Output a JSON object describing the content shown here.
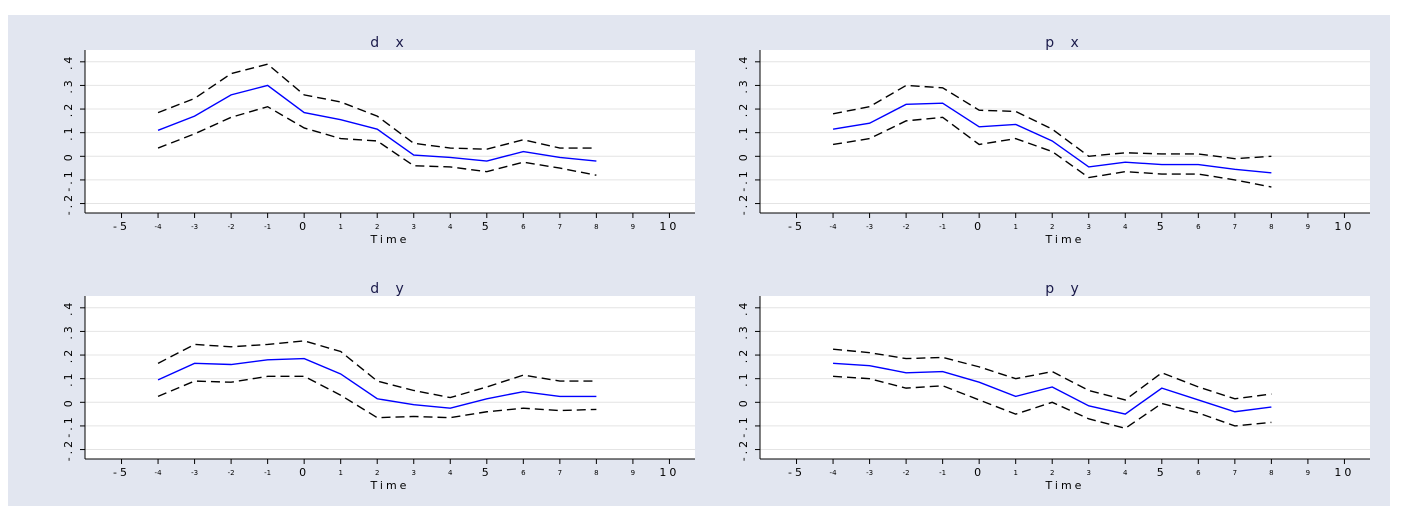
{
  "chart_data": [
    {
      "type": "line",
      "title": "d x",
      "x_label": "Time",
      "x": [
        -4,
        -3,
        -2,
        -1,
        0,
        1,
        2,
        3,
        4,
        5,
        6,
        7,
        8
      ],
      "series": [
        {
          "color": "#0000ff",
          "style": "solid",
          "values": [
            0.11,
            0.17,
            0.26,
            0.3,
            0.185,
            0.155,
            0.115,
            0.005,
            -0.005,
            -0.02,
            0.02,
            -0.005,
            -0.02
          ]
        },
        {
          "color": "#000000",
          "style": "dashed",
          "values": [
            0.185,
            0.245,
            0.35,
            0.39,
            0.26,
            0.23,
            0.17,
            0.055,
            0.035,
            0.03,
            0.07,
            0.035,
            0.035
          ]
        },
        {
          "color": "#000000",
          "style": "dashed",
          "values": [
            0.035,
            0.095,
            0.165,
            0.21,
            0.12,
            0.075,
            0.065,
            -0.04,
            -0.045,
            -0.065,
            -0.025,
            -0.05,
            -0.08
          ]
        }
      ],
      "xlim": [
        -6,
        10.7
      ],
      "ylim": [
        -0.24,
        0.45
      ],
      "xticks": [
        -5,
        -4,
        -3,
        -2,
        -1,
        0,
        1,
        2,
        3,
        4,
        5,
        6,
        7,
        8,
        9,
        10
      ],
      "yticks": [
        {
          "value": -0.2,
          "label": "-.2"
        },
        {
          "value": -0.1,
          "label": "-.1"
        },
        0,
        {
          "value": 0.1,
          "label": ".1"
        },
        {
          "value": 0.2,
          "label": ".2"
        },
        {
          "value": 0.3,
          "label": ".3"
        },
        {
          "value": 0.4,
          "label": ".4"
        }
      ],
      "grid": true
    },
    {
      "type": "line",
      "title": "p x",
      "x_label": "Time",
      "x": [
        -4,
        -3,
        -2,
        -1,
        0,
        1,
        2,
        3,
        4,
        5,
        6,
        7,
        8
      ],
      "series": [
        {
          "color": "#0000ff",
          "style": "solid",
          "values": [
            0.115,
            0.14,
            0.22,
            0.225,
            0.125,
            0.135,
            0.065,
            -0.045,
            -0.025,
            -0.035,
            -0.035,
            -0.055,
            -0.07
          ]
        },
        {
          "color": "#000000",
          "style": "dashed",
          "values": [
            0.18,
            0.21,
            0.3,
            0.29,
            0.195,
            0.19,
            0.115,
            0.0,
            0.015,
            0.01,
            0.01,
            -0.01,
            0.0
          ]
        },
        {
          "color": "#000000",
          "style": "dashed",
          "values": [
            0.05,
            0.075,
            0.15,
            0.165,
            0.05,
            0.075,
            0.02,
            -0.09,
            -0.065,
            -0.075,
            -0.075,
            -0.1,
            -0.13
          ]
        }
      ],
      "xlim": [
        -6,
        10.7
      ],
      "ylim": [
        -0.24,
        0.45
      ],
      "xticks": [
        -5,
        -4,
        -3,
        -2,
        -1,
        0,
        1,
        2,
        3,
        4,
        5,
        6,
        7,
        8,
        9,
        10
      ],
      "yticks": [
        {
          "value": -0.2,
          "label": "-.2"
        },
        {
          "value": -0.1,
          "label": "-.1"
        },
        0,
        {
          "value": 0.1,
          "label": ".1"
        },
        {
          "value": 0.2,
          "label": ".2"
        },
        {
          "value": 0.3,
          "label": ".3"
        },
        {
          "value": 0.4,
          "label": ".4"
        }
      ],
      "grid": true
    },
    {
      "type": "line",
      "title": "d y",
      "x_label": "Time",
      "x": [
        -4,
        -3,
        -2,
        -1,
        0,
        1,
        2,
        3,
        4,
        5,
        6,
        7,
        8
      ],
      "series": [
        {
          "color": "#0000ff",
          "style": "solid",
          "values": [
            0.095,
            0.165,
            0.16,
            0.18,
            0.185,
            0.12,
            0.015,
            -0.01,
            -0.025,
            0.015,
            0.045,
            0.025,
            0.025
          ]
        },
        {
          "color": "#000000",
          "style": "dashed",
          "values": [
            0.165,
            0.245,
            0.235,
            0.245,
            0.26,
            0.215,
            0.09,
            0.05,
            0.02,
            0.065,
            0.115,
            0.09,
            0.09
          ]
        },
        {
          "color": "#000000",
          "style": "dashed",
          "values": [
            0.025,
            0.09,
            0.085,
            0.11,
            0.11,
            0.03,
            -0.065,
            -0.06,
            -0.065,
            -0.04,
            -0.025,
            -0.035,
            -0.03
          ]
        }
      ],
      "xlim": [
        -6,
        10.7
      ],
      "ylim": [
        -0.24,
        0.45
      ],
      "xticks": [
        -5,
        -4,
        -3,
        -2,
        -1,
        0,
        1,
        2,
        3,
        4,
        5,
        6,
        7,
        8,
        9,
        10
      ],
      "yticks": [
        {
          "value": -0.2,
          "label": "-.2"
        },
        {
          "value": -0.1,
          "label": "-.1"
        },
        0,
        {
          "value": 0.1,
          "label": ".1"
        },
        {
          "value": 0.2,
          "label": ".2"
        },
        {
          "value": 0.3,
          "label": ".3"
        },
        {
          "value": 0.4,
          "label": ".4"
        }
      ],
      "grid": true
    },
    {
      "type": "line",
      "title": "p y",
      "x_label": "Time",
      "x": [
        -4,
        -3,
        -2,
        -1,
        0,
        1,
        2,
        3,
        4,
        5,
        6,
        7,
        8
      ],
      "series": [
        {
          "color": "#0000ff",
          "style": "solid",
          "values": [
            0.165,
            0.155,
            0.125,
            0.13,
            0.085,
            0.025,
            0.065,
            -0.015,
            -0.05,
            0.06,
            0.01,
            -0.04,
            -0.02
          ]
        },
        {
          "color": "#000000",
          "style": "dashed",
          "values": [
            0.225,
            0.21,
            0.185,
            0.19,
            0.15,
            0.1,
            0.13,
            0.05,
            0.01,
            0.125,
            0.065,
            0.015,
            0.035
          ]
        },
        {
          "color": "#000000",
          "style": "dashed",
          "values": [
            0.11,
            0.1,
            0.06,
            0.07,
            0.01,
            -0.05,
            0.0,
            -0.07,
            -0.11,
            -0.005,
            -0.045,
            -0.1,
            -0.085
          ]
        }
      ],
      "xlim": [
        -6,
        10.7
      ],
      "ylim": [
        -0.24,
        0.45
      ],
      "xticks": [
        -5,
        -4,
        -3,
        -2,
        -1,
        0,
        1,
        2,
        3,
        4,
        5,
        6,
        7,
        8,
        9,
        10
      ],
      "yticks": [
        {
          "value": -0.2,
          "label": "-.2"
        },
        {
          "value": -0.1,
          "label": "-.1"
        },
        0,
        {
          "value": 0.1,
          "label": ".1"
        },
        {
          "value": 0.2,
          "label": ".2"
        },
        {
          "value": 0.3,
          "label": ".3"
        },
        {
          "value": 0.4,
          "label": ".4"
        }
      ],
      "grid": true
    }
  ]
}
